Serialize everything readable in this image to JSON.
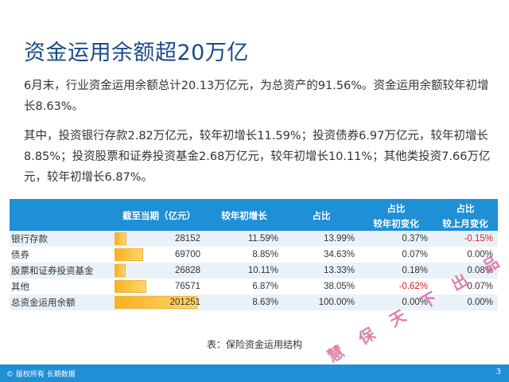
{
  "title": "资金运用余额超20万亿",
  "para1": "6月末，行业资金运用余额总计20.13万亿元，为总资产的91.56%。资金运用余额较年初增长8.63%。",
  "para2": "其中，投资银行存款2.82万亿元，较年初增长11.59%；投资债券6.97万亿元，较年初增长8.85%；投资股票和证券投资基金2.68万亿元，较年初增长10.11%；其他类投资7.66万亿元，较年初增长6.87%。",
  "table": {
    "headers": {
      "amount": "截至当期（亿元）",
      "growth": "较年初增长",
      "share": "占比",
      "share_ytd_top": "占比",
      "share_ytd_bottom": "较年初变化",
      "share_mom_top": "占比",
      "share_mom_bottom": "较上月变化"
    },
    "rows": [
      {
        "label": "银行存款",
        "amount": "28152",
        "growth": "11.59%",
        "share": "13.99%",
        "ytd": "0.37%",
        "mom": "-0.15%",
        "amount_value": 28152
      },
      {
        "label": "债券",
        "amount": "69700",
        "growth": "8.85%",
        "share": "34.63%",
        "ytd": "0.07%",
        "mom": "0.00%",
        "amount_value": 69700
      },
      {
        "label": "股票和证券投资基金",
        "amount": "26828",
        "growth": "10.11%",
        "share": "13.33%",
        "ytd": "0.18%",
        "mom": "0.08%",
        "amount_value": 26828
      },
      {
        "label": "其他",
        "amount": "76571",
        "growth": "6.87%",
        "share": "38.05%",
        "ytd": "-0.62%",
        "mom": "0.07%",
        "amount_value": 76571
      },
      {
        "label": "总资金运用余额",
        "amount": "201251",
        "growth": "8.63%",
        "share": "100.00%",
        "ytd": "0.00%",
        "mom": "0.00%",
        "amount_value": 201251
      }
    ]
  },
  "caption": "表：保险资金运用结构",
  "stamp": "慧保天下出品",
  "footer": {
    "copyright": "© 版权所有 长期数据",
    "page": "3"
  },
  "colors": {
    "header_bg": "#1f8fd6",
    "title": "#1a4a8a",
    "negative": "#e02020",
    "bar": "#f8b020"
  }
}
